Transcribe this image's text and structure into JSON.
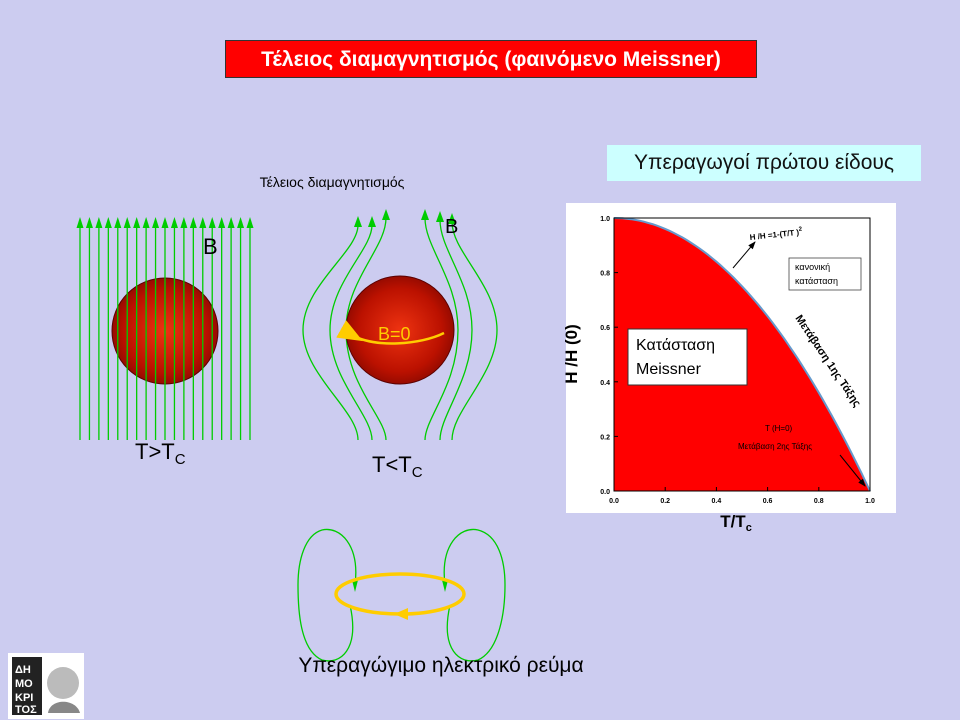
{
  "title": "Τέλειος διαμαγνητισμός (φαινόμενο Meissner)",
  "type1_title": "Υπεραγωγοί πρώτου είδους",
  "diamag": {
    "subtitle": "Τέλειος διαμαγνητισμός",
    "field_label_left": "B",
    "field_label_right": "B",
    "inside_label": "B=0",
    "cond_left_main": "T>T",
    "cond_left_sub": "C",
    "cond_right_main": "T<T",
    "cond_right_sub": "C"
  },
  "current_caption": "Υπεραγώγιμο ηλεκτρικό ρεύμα",
  "colors": {
    "field_lines": "#00cc00",
    "sphere": "#cc1100",
    "current": "#ffcc00",
    "meissner_region": "#ff0000",
    "phase_curve": "#6699cc"
  },
  "chart_data": {
    "type": "area",
    "xlabel": "T/T",
    "xlabel_sub": "c",
    "ylabel": "H /H (0)",
    "ylabel_sub": "c c",
    "xlim": [
      0,
      1
    ],
    "ylim": [
      0,
      1
    ],
    "x_ticks": [
      "0.0",
      "0.2",
      "0.4",
      "0.6",
      "0.8",
      "1.0"
    ],
    "y_ticks": [
      "0.0",
      "0.2",
      "0.4",
      "0.6",
      "0.8",
      "1.0"
    ],
    "curve_formula": "H /H =1-(T/T )",
    "curve_formula_sup": "2",
    "curve_x": [
      0,
      0.1,
      0.2,
      0.3,
      0.4,
      0.5,
      0.6,
      0.7,
      0.8,
      0.9,
      1.0
    ],
    "curve_y": [
      1.0,
      0.99,
      0.96,
      0.91,
      0.84,
      0.75,
      0.64,
      0.51,
      0.36,
      0.19,
      0.0
    ],
    "region_inside": [
      "Κατάσταση",
      "Meissner"
    ],
    "region_outside": [
      "κανονική",
      "κατάσταση"
    ],
    "first_order_label": "Μετάβαση 1ης Τάξης",
    "second_order_line1": "T (H=0)",
    "second_order_line2": "Μετάβαση 2ης Τάξης"
  }
}
